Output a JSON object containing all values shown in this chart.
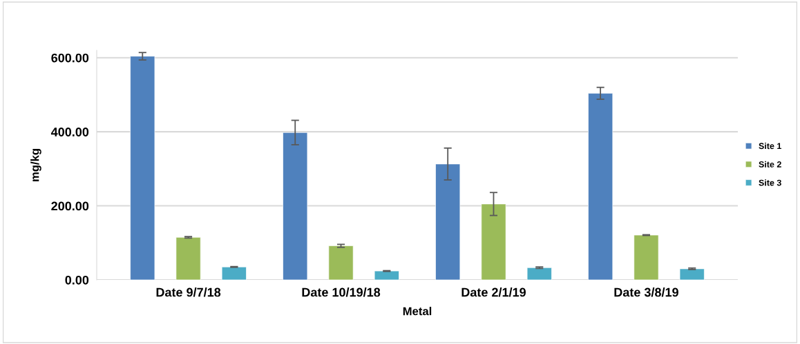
{
  "chart_data": {
    "type": "bar",
    "xlabel": "Metal",
    "ylabel": "mg/kg",
    "categories": [
      "Date 9/7/18",
      "Date 10/19/18",
      "Date 2/1/19",
      "Date 3/8/19"
    ],
    "series": [
      {
        "name": "Site 1",
        "color": "#4f81bd",
        "values": [
          604,
          398,
          313,
          504
        ],
        "errors": [
          10,
          33,
          43,
          16
        ]
      },
      {
        "name": "Site 2",
        "color": "#9bbb59",
        "values": [
          115,
          92,
          205,
          121
        ],
        "errors": [
          2,
          4,
          31,
          1
        ]
      },
      {
        "name": "Site 3",
        "color": "#4bacc6",
        "values": [
          35,
          24,
          33,
          30
        ],
        "errors": [
          1,
          1,
          2,
          2
        ]
      }
    ],
    "ylim": [
      0,
      620
    ],
    "yticks": [
      {
        "value": 0,
        "label": "0.00"
      },
      {
        "value": 200,
        "label": "200.00"
      },
      {
        "value": 400,
        "label": "400.00"
      },
      {
        "value": 600,
        "label": "600.00"
      }
    ],
    "grid": "y",
    "legend": "right"
  }
}
